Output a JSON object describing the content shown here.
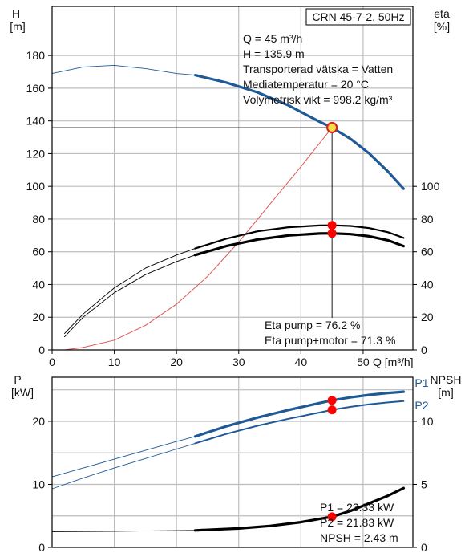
{
  "title_box": "CRN 45-7-2, 50Hz",
  "colors": {
    "head": "#1f5a96",
    "power": "#1f5a96",
    "eta": "#000000",
    "npsh": "#000000",
    "system": "#e05555",
    "op_point": "#ff0000",
    "op_point_head_fill": "#f2e14a",
    "grid": "#bdbdbd"
  },
  "info_top": [
    "Q = 45 m³/h",
    "H = 135.9 m",
    "Transporterad vätska = Vatten",
    "Mediatemperatur = 20 °C",
    "Volymetrisk vikt = 998.2 kg/m³"
  ],
  "info_eta": [
    "Eta pump = 76.2 %",
    "Eta pump+motor = 71.3 %"
  ],
  "info_power": [
    "P1 = 23.33 kW",
    "P2 = 21.83 kW",
    "NPSH = 2.43 m"
  ],
  "chart_data": [
    {
      "type": "line",
      "name": "head-efficiency-chart",
      "axis_labels": {
        "y_left": [
          "H",
          "[m]"
        ],
        "y_right": [
          "eta",
          "[%]"
        ],
        "x": "Q [m³/h]"
      },
      "x_ticks": [
        "0",
        "10",
        "20",
        "30",
        "40",
        "50"
      ],
      "y_left_ticks": [
        "0",
        "20",
        "40",
        "60",
        "80",
        "100",
        "120",
        "140",
        "160",
        "180"
      ],
      "y_right_ticks": [
        "0",
        "20",
        "40",
        "60",
        "80",
        "100"
      ],
      "xlim": [
        0,
        58
      ],
      "ylim_left": [
        0,
        210
      ],
      "ylim_right": [
        0,
        210
      ],
      "grid": true,
      "operating_point": {
        "q": 45,
        "h": 135.9,
        "eta_pump": 76.2,
        "eta_pump_motor": 71.3
      },
      "series": [
        {
          "id": "head-thin",
          "axis": "left",
          "x": [
            0,
            5,
            10,
            15,
            20,
            23
          ],
          "y": [
            169,
            173,
            174,
            172,
            169,
            168
          ]
        },
        {
          "id": "head",
          "axis": "left",
          "x": [
            23,
            28,
            33,
            38,
            43,
            45,
            48,
            51,
            54,
            56.5
          ],
          "y": [
            168,
            163.5,
            157.5,
            149.5,
            139.5,
            135.9,
            129,
            120,
            109,
            98.5
          ]
        },
        {
          "id": "system-curve",
          "axis": "left",
          "x": [
            2,
            5,
            10,
            15,
            20,
            25,
            30,
            35,
            40,
            45
          ],
          "y": [
            0,
            1.5,
            6,
            15,
            28,
            45,
            66,
            89,
            112,
            135.9
          ]
        },
        {
          "id": "eta-pump-thin",
          "axis": "right",
          "x": [
            2,
            5,
            10,
            15,
            20,
            23
          ],
          "y": [
            10,
            22,
            38,
            50,
            58,
            62
          ]
        },
        {
          "id": "eta-pump",
          "axis": "right",
          "x": [
            23,
            28,
            33,
            38,
            43,
            45,
            48,
            51,
            54,
            56.5
          ],
          "y": [
            62,
            68,
            72.5,
            75,
            76.1,
            76.2,
            75.8,
            74.5,
            72,
            68.5
          ]
        },
        {
          "id": "eta-pump-motor-thin",
          "axis": "right",
          "x": [
            2,
            5,
            10,
            15,
            20,
            23
          ],
          "y": [
            8,
            20,
            35,
            46,
            54,
            58
          ]
        },
        {
          "id": "eta-pump-motor",
          "axis": "right",
          "x": [
            23,
            28,
            33,
            38,
            43,
            45,
            48,
            51,
            54,
            56.5
          ],
          "y": [
            58,
            63.5,
            67.5,
            70,
            71.2,
            71.3,
            70.8,
            69.5,
            67,
            63.5
          ]
        }
      ]
    },
    {
      "type": "line",
      "name": "power-npsh-chart",
      "axis_labels": {
        "y_left": [
          "P",
          "[kW]"
        ],
        "y_right": [
          "NPSH",
          "[m]"
        ]
      },
      "y_left_ticks": [
        "0",
        "10",
        "20"
      ],
      "y_right_ticks": [
        "0",
        "5",
        "10"
      ],
      "xlim": [
        0,
        58
      ],
      "ylim_left": [
        0,
        27
      ],
      "ylim_right": [
        0,
        13.5
      ],
      "grid": true,
      "operating_point": {
        "q": 45,
        "p1": 23.33,
        "p2": 21.83,
        "npsh": 2.43
      },
      "series": [
        {
          "id": "p1-thin",
          "axis": "left",
          "x": [
            0,
            5,
            10,
            15,
            20,
            23
          ],
          "y": [
            11.2,
            12.6,
            14,
            15.4,
            16.8,
            17.6
          ]
        },
        {
          "id": "p1",
          "name": "P1",
          "axis": "left",
          "x": [
            23,
            28,
            33,
            38,
            43,
            45,
            48,
            51,
            54,
            56.5
          ],
          "y": [
            17.6,
            19.2,
            20.6,
            21.8,
            22.9,
            23.33,
            23.8,
            24.2,
            24.5,
            24.7
          ]
        },
        {
          "id": "p2-thin",
          "axis": "left",
          "x": [
            0,
            5,
            10,
            15,
            20,
            23
          ],
          "y": [
            9.3,
            11,
            12.6,
            14.1,
            15.6,
            16.5
          ]
        },
        {
          "id": "p2",
          "name": "P2",
          "axis": "left",
          "x": [
            23,
            28,
            33,
            38,
            43,
            45,
            48,
            51,
            54,
            56.5
          ],
          "y": [
            16.5,
            18,
            19.3,
            20.4,
            21.4,
            21.83,
            22.3,
            22.7,
            23,
            23.2
          ]
        },
        {
          "id": "npsh-thin",
          "axis": "right",
          "x": [
            0,
            10,
            20,
            23
          ],
          "y": [
            1.25,
            1.28,
            1.33,
            1.35
          ]
        },
        {
          "id": "npsh",
          "axis": "right",
          "x": [
            23,
            30,
            35,
            40,
            45,
            48,
            51,
            54,
            56.5
          ],
          "y": [
            1.35,
            1.5,
            1.7,
            2,
            2.43,
            2.9,
            3.5,
            4.1,
            4.7
          ]
        }
      ]
    }
  ]
}
